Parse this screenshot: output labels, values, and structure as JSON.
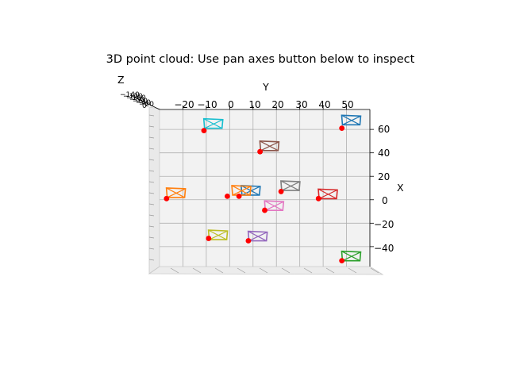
{
  "chart_data": {
    "type": "scatter",
    "title": "3D point cloud: Use pan axes button below to inspect",
    "xlabel": "X",
    "ylabel": "Y",
    "zlabel": "Z",
    "view": "top-down (Y horizontal, X vertical)",
    "grid": true,
    "x_ticks": [
      "−40",
      "−20",
      "0",
      "20",
      "40",
      "60"
    ],
    "y_ticks": [
      "−20",
      "−10",
      "0",
      "10",
      "20",
      "30",
      "40",
      "50"
    ],
    "z_ticks": [
      "−140",
      "−120",
      "−100",
      "−80",
      "−60",
      "−40",
      "−20",
      "0"
    ],
    "ylim": [
      -30,
      60
    ],
    "xlim": [
      -57,
      77
    ],
    "point_color": "#ff0000",
    "points": [
      {
        "y": -1,
        "x": 3
      },
      {
        "y": 4,
        "x": 3
      },
      {
        "y": -27,
        "x": 1
      },
      {
        "y": 22,
        "x": 7
      },
      {
        "y": 38,
        "x": 1
      },
      {
        "y": 15,
        "x": -9
      },
      {
        "y": 13,
        "x": 41
      },
      {
        "y": -11,
        "x": 59
      },
      {
        "y": 48,
        "x": 61
      },
      {
        "y": -9,
        "x": -33
      },
      {
        "y": 8,
        "x": -35
      },
      {
        "y": 48,
        "x": -52
      }
    ],
    "cameras": [
      {
        "color": "#1f77b4",
        "y": 9,
        "x": 8
      },
      {
        "color": "#ff7f0e",
        "y": -23,
        "x": 6
      },
      {
        "color": "#ff7f0e",
        "y": 5,
        "x": 8
      },
      {
        "color": "#8c564b",
        "y": 17,
        "x": 46
      },
      {
        "color": "#7f7f7f",
        "y": 26,
        "x": 12
      },
      {
        "color": "#d62728",
        "y": 42,
        "x": 5
      },
      {
        "color": "#e377c2",
        "y": 19,
        "x": -5
      },
      {
        "color": "#17becf",
        "y": -7,
        "x": 65
      },
      {
        "color": "#1f77b4",
        "y": 52,
        "x": 68
      },
      {
        "color": "#bcbd22",
        "y": -5,
        "x": -30
      },
      {
        "color": "#9467bd",
        "y": 12,
        "x": -31
      },
      {
        "color": "#2ca02c",
        "y": 52,
        "x": -48
      }
    ]
  }
}
